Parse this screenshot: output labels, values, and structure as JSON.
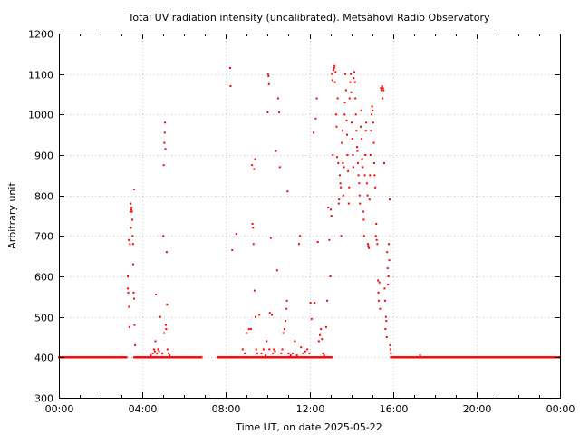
{
  "chart_data": {
    "type": "scatter",
    "title": "Total UV radiation intensity (uncalibrated). Metsähovi Radio Observatory",
    "xlabel": "Time UT, on date 2025-05-22",
    "ylabel": "Arbitrary unit",
    "xlim": [
      0,
      24
    ],
    "ylim": [
      300,
      1200
    ],
    "x_tick_values": [
      0,
      4,
      8,
      12,
      16,
      20,
      24
    ],
    "x_tick_labels": [
      "00:00",
      "04:00",
      "08:00",
      "12:00",
      "16:00",
      "20:00",
      "00:00"
    ],
    "y_ticks": [
      300,
      400,
      500,
      600,
      700,
      800,
      900,
      1000,
      1100,
      1200
    ],
    "grid": true,
    "marker_color": "#ff0000",
    "baseline": {
      "value": 400,
      "segments": [
        [
          0.0,
          3.25
        ],
        [
          3.6,
          6.85
        ],
        [
          7.6,
          13.1
        ],
        [
          15.9,
          24.0
        ]
      ],
      "step_hours": 0.02
    },
    "points": [
      [
        3.3,
        600
      ],
      [
        3.3,
        570
      ],
      [
        3.32,
        560
      ],
      [
        3.35,
        690
      ],
      [
        3.36,
        525
      ],
      [
        3.38,
        475
      ],
      [
        3.4,
        680
      ],
      [
        3.42,
        760
      ],
      [
        3.44,
        780
      ],
      [
        3.45,
        720
      ],
      [
        3.47,
        765
      ],
      [
        3.48,
        770
      ],
      [
        3.5,
        760
      ],
      [
        3.52,
        740
      ],
      [
        3.53,
        700
      ],
      [
        3.55,
        680
      ],
      [
        3.56,
        630
      ],
      [
        3.58,
        560
      ],
      [
        3.6,
        545
      ],
      [
        3.6,
        815
      ],
      [
        3.62,
        480
      ],
      [
        3.65,
        430
      ],
      [
        3.7,
        400
      ],
      [
        4.4,
        405
      ],
      [
        4.5,
        410
      ],
      [
        4.55,
        420
      ],
      [
        4.6,
        415
      ],
      [
        4.62,
        440
      ],
      [
        4.65,
        555
      ],
      [
        4.7,
        410
      ],
      [
        4.75,
        420
      ],
      [
        4.8,
        415
      ],
      [
        4.85,
        500
      ],
      [
        4.9,
        400
      ],
      [
        4.95,
        410
      ],
      [
        5.0,
        700
      ],
      [
        5.02,
        875
      ],
      [
        5.04,
        460
      ],
      [
        5.05,
        930
      ],
      [
        5.07,
        955
      ],
      [
        5.08,
        980
      ],
      [
        5.1,
        915
      ],
      [
        5.12,
        480
      ],
      [
        5.14,
        470
      ],
      [
        5.16,
        660
      ],
      [
        5.18,
        530
      ],
      [
        5.2,
        420
      ],
      [
        5.25,
        410
      ],
      [
        5.3,
        405
      ],
      [
        8.2,
        1115
      ],
      [
        8.22,
        1070
      ],
      [
        8.3,
        665
      ],
      [
        8.5,
        705
      ],
      [
        8.8,
        420
      ],
      [
        8.9,
        410
      ],
      [
        9.0,
        460
      ],
      [
        9.1,
        470
      ],
      [
        9.2,
        470
      ],
      [
        9.25,
        875
      ],
      [
        9.27,
        730
      ],
      [
        9.3,
        720
      ],
      [
        9.32,
        680
      ],
      [
        9.35,
        865
      ],
      [
        9.37,
        565
      ],
      [
        9.4,
        890
      ],
      [
        9.42,
        500
      ],
      [
        9.45,
        420
      ],
      [
        9.5,
        410
      ],
      [
        9.6,
        505
      ],
      [
        9.7,
        410
      ],
      [
        9.8,
        420
      ],
      [
        9.9,
        405
      ],
      [
        9.95,
        440
      ],
      [
        10.0,
        1005
      ],
      [
        10.02,
        1100
      ],
      [
        10.04,
        1095
      ],
      [
        10.06,
        1075
      ],
      [
        10.08,
        420
      ],
      [
        10.1,
        510
      ],
      [
        10.15,
        695
      ],
      [
        10.2,
        505
      ],
      [
        10.25,
        410
      ],
      [
        10.3,
        420
      ],
      [
        10.35,
        415
      ],
      [
        10.4,
        910
      ],
      [
        10.45,
        615
      ],
      [
        10.5,
        1040
      ],
      [
        10.55,
        1005
      ],
      [
        10.58,
        870
      ],
      [
        10.65,
        410
      ],
      [
        10.7,
        420
      ],
      [
        10.75,
        460
      ],
      [
        10.8,
        470
      ],
      [
        10.85,
        490
      ],
      [
        10.9,
        520
      ],
      [
        10.92,
        540
      ],
      [
        10.95,
        810
      ],
      [
        11.0,
        410
      ],
      [
        11.1,
        405
      ],
      [
        11.2,
        410
      ],
      [
        11.3,
        440
      ],
      [
        11.4,
        405
      ],
      [
        11.5,
        680
      ],
      [
        11.55,
        700
      ],
      [
        11.6,
        425
      ],
      [
        11.7,
        410
      ],
      [
        11.8,
        415
      ],
      [
        11.9,
        420
      ],
      [
        12.0,
        410
      ],
      [
        12.05,
        535
      ],
      [
        12.1,
        495
      ],
      [
        12.2,
        955
      ],
      [
        12.25,
        535
      ],
      [
        12.3,
        990
      ],
      [
        12.35,
        1040
      ],
      [
        12.4,
        685
      ],
      [
        12.45,
        440
      ],
      [
        12.5,
        455
      ],
      [
        12.55,
        470
      ],
      [
        12.6,
        445
      ],
      [
        12.65,
        410
      ],
      [
        12.7,
        405
      ],
      [
        12.8,
        475
      ],
      [
        12.85,
        540
      ],
      [
        12.9,
        770
      ],
      [
        12.95,
        690
      ],
      [
        13.0,
        600
      ],
      [
        13.02,
        765
      ],
      [
        13.05,
        750
      ],
      [
        13.08,
        1100
      ],
      [
        13.1,
        1085
      ],
      [
        13.12,
        900
      ],
      [
        13.15,
        1110
      ],
      [
        13.18,
        1115
      ],
      [
        13.2,
        1120
      ],
      [
        13.22,
        1080
      ],
      [
        13.25,
        1105
      ],
      [
        13.28,
        1000
      ],
      [
        13.3,
        970
      ],
      [
        13.32,
        895
      ],
      [
        13.35,
        1040
      ],
      [
        13.38,
        880
      ],
      [
        13.4,
        780
      ],
      [
        13.42,
        790
      ],
      [
        13.45,
        850
      ],
      [
        13.48,
        830
      ],
      [
        13.5,
        820
      ],
      [
        13.52,
        700
      ],
      [
        13.55,
        930
      ],
      [
        13.58,
        960
      ],
      [
        13.6,
        880
      ],
      [
        13.62,
        800
      ],
      [
        13.65,
        870
      ],
      [
        13.68,
        1000
      ],
      [
        13.7,
        1030
      ],
      [
        13.72,
        1100
      ],
      [
        13.75,
        1060
      ],
      [
        13.78,
        985
      ],
      [
        13.8,
        950
      ],
      [
        13.82,
        900
      ],
      [
        13.85,
        860
      ],
      [
        13.88,
        780
      ],
      [
        13.9,
        820
      ],
      [
        13.92,
        1040
      ],
      [
        13.95,
        1080
      ],
      [
        13.98,
        1100
      ],
      [
        14.0,
        1055
      ],
      [
        14.02,
        980
      ],
      [
        14.05,
        940
      ],
      [
        14.08,
        900
      ],
      [
        14.1,
        870
      ],
      [
        14.12,
        1090
      ],
      [
        14.15,
        1105
      ],
      [
        14.18,
        1080
      ],
      [
        14.2,
        1040
      ],
      [
        14.22,
        1000
      ],
      [
        14.25,
        960
      ],
      [
        14.28,
        920
      ],
      [
        14.3,
        910
      ],
      [
        14.32,
        880
      ],
      [
        14.35,
        850
      ],
      [
        14.38,
        830
      ],
      [
        14.4,
        800
      ],
      [
        14.42,
        780
      ],
      [
        14.45,
        970
      ],
      [
        14.48,
        1010
      ],
      [
        14.5,
        940
      ],
      [
        14.52,
        890
      ],
      [
        14.55,
        870
      ],
      [
        14.58,
        760
      ],
      [
        14.6,
        740
      ],
      [
        14.62,
        700
      ],
      [
        14.65,
        850
      ],
      [
        14.68,
        900
      ],
      [
        14.7,
        960
      ],
      [
        14.72,
        980
      ],
      [
        14.75,
        830
      ],
      [
        14.78,
        800
      ],
      [
        14.8,
        680
      ],
      [
        14.82,
        675
      ],
      [
        14.85,
        670
      ],
      [
        14.88,
        790
      ],
      [
        14.9,
        850
      ],
      [
        14.92,
        900
      ],
      [
        14.95,
        960
      ],
      [
        14.98,
        1000
      ],
      [
        15.0,
        1020
      ],
      [
        15.02,
        1010
      ],
      [
        15.05,
        980
      ],
      [
        15.08,
        930
      ],
      [
        15.1,
        880
      ],
      [
        15.12,
        850
      ],
      [
        15.15,
        820
      ],
      [
        15.18,
        700
      ],
      [
        15.2,
        730
      ],
      [
        15.22,
        690
      ],
      [
        15.25,
        680
      ],
      [
        15.28,
        590
      ],
      [
        15.3,
        560
      ],
      [
        15.32,
        540
      ],
      [
        15.35,
        585
      ],
      [
        15.38,
        520
      ],
      [
        15.42,
        1065
      ],
      [
        15.45,
        1060
      ],
      [
        15.48,
        1070
      ],
      [
        15.5,
        1040
      ],
      [
        15.52,
        1065
      ],
      [
        15.55,
        1060
      ],
      [
        15.58,
        880
      ],
      [
        15.6,
        570
      ],
      [
        15.62,
        540
      ],
      [
        15.64,
        470
      ],
      [
        15.66,
        500
      ],
      [
        15.68,
        490
      ],
      [
        15.7,
        450
      ],
      [
        15.72,
        660
      ],
      [
        15.74,
        620
      ],
      [
        15.76,
        580
      ],
      [
        15.78,
        600
      ],
      [
        15.8,
        680
      ],
      [
        15.82,
        640
      ],
      [
        15.84,
        790
      ],
      [
        15.86,
        430
      ],
      [
        15.88,
        420
      ],
      [
        15.9,
        410
      ],
      [
        17.3,
        405
      ]
    ]
  }
}
